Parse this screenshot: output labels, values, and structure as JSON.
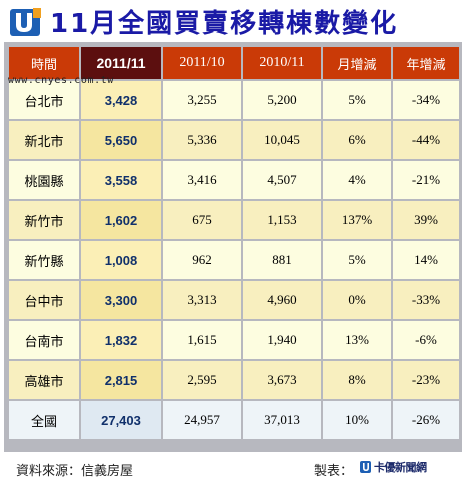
{
  "title": "11月全國買賣移轉棟數變化",
  "watermark": "www.cnyes.com.tw",
  "table": {
    "headers": [
      "時間",
      "2011/11",
      "2011/10",
      "2010/11",
      "月增減",
      "年增減"
    ],
    "rows": [
      {
        "city": "台北市",
        "current": "3,428",
        "prev_month": "3,255",
        "prev_year": "5,200",
        "mom": "5%",
        "yoy": "-34%"
      },
      {
        "city": "新北市",
        "current": "5,650",
        "prev_month": "5,336",
        "prev_year": "10,045",
        "mom": "6%",
        "yoy": "-44%"
      },
      {
        "city": "桃園縣",
        "current": "3,558",
        "prev_month": "3,416",
        "prev_year": "4,507",
        "mom": "4%",
        "yoy": "-21%"
      },
      {
        "city": "新竹市",
        "current": "1,602",
        "prev_month": "675",
        "prev_year": "1,153",
        "mom": "137%",
        "yoy": "39%"
      },
      {
        "city": "新竹縣",
        "current": "1,008",
        "prev_month": "962",
        "prev_year": "881",
        "mom": "5%",
        "yoy": "14%"
      },
      {
        "city": "台中市",
        "current": "3,300",
        "prev_month": "3,313",
        "prev_year": "4,960",
        "mom": "0%",
        "yoy": "-33%"
      },
      {
        "city": "台南市",
        "current": "1,832",
        "prev_month": "1,615",
        "prev_year": "1,940",
        "mom": "13%",
        "yoy": "-6%"
      },
      {
        "city": "高雄市",
        "current": "2,815",
        "prev_month": "2,595",
        "prev_year": "3,673",
        "mom": "8%",
        "yoy": "-23%"
      }
    ],
    "total": {
      "city": "全國",
      "current": "27,403",
      "prev_month": "24,957",
      "prev_year": "37,013",
      "mom": "10%",
      "yoy": "-26%"
    }
  },
  "footer": {
    "source": "資料來源：信義房屋",
    "maker_label": "製表：",
    "brand": "卡優新聞網"
  },
  "colors": {
    "title": "#1a1aa6",
    "header_bg": "#ca3a07",
    "header_current_bg": "#5c0f0f",
    "current_value": "#10306b",
    "row_odd": "#fdfde0",
    "row_even": "#f8efbf",
    "total_row": "#eef4f8"
  },
  "icons": {
    "logo": "cardu-u-logo-icon",
    "brand": "cardu-brand-icon"
  }
}
